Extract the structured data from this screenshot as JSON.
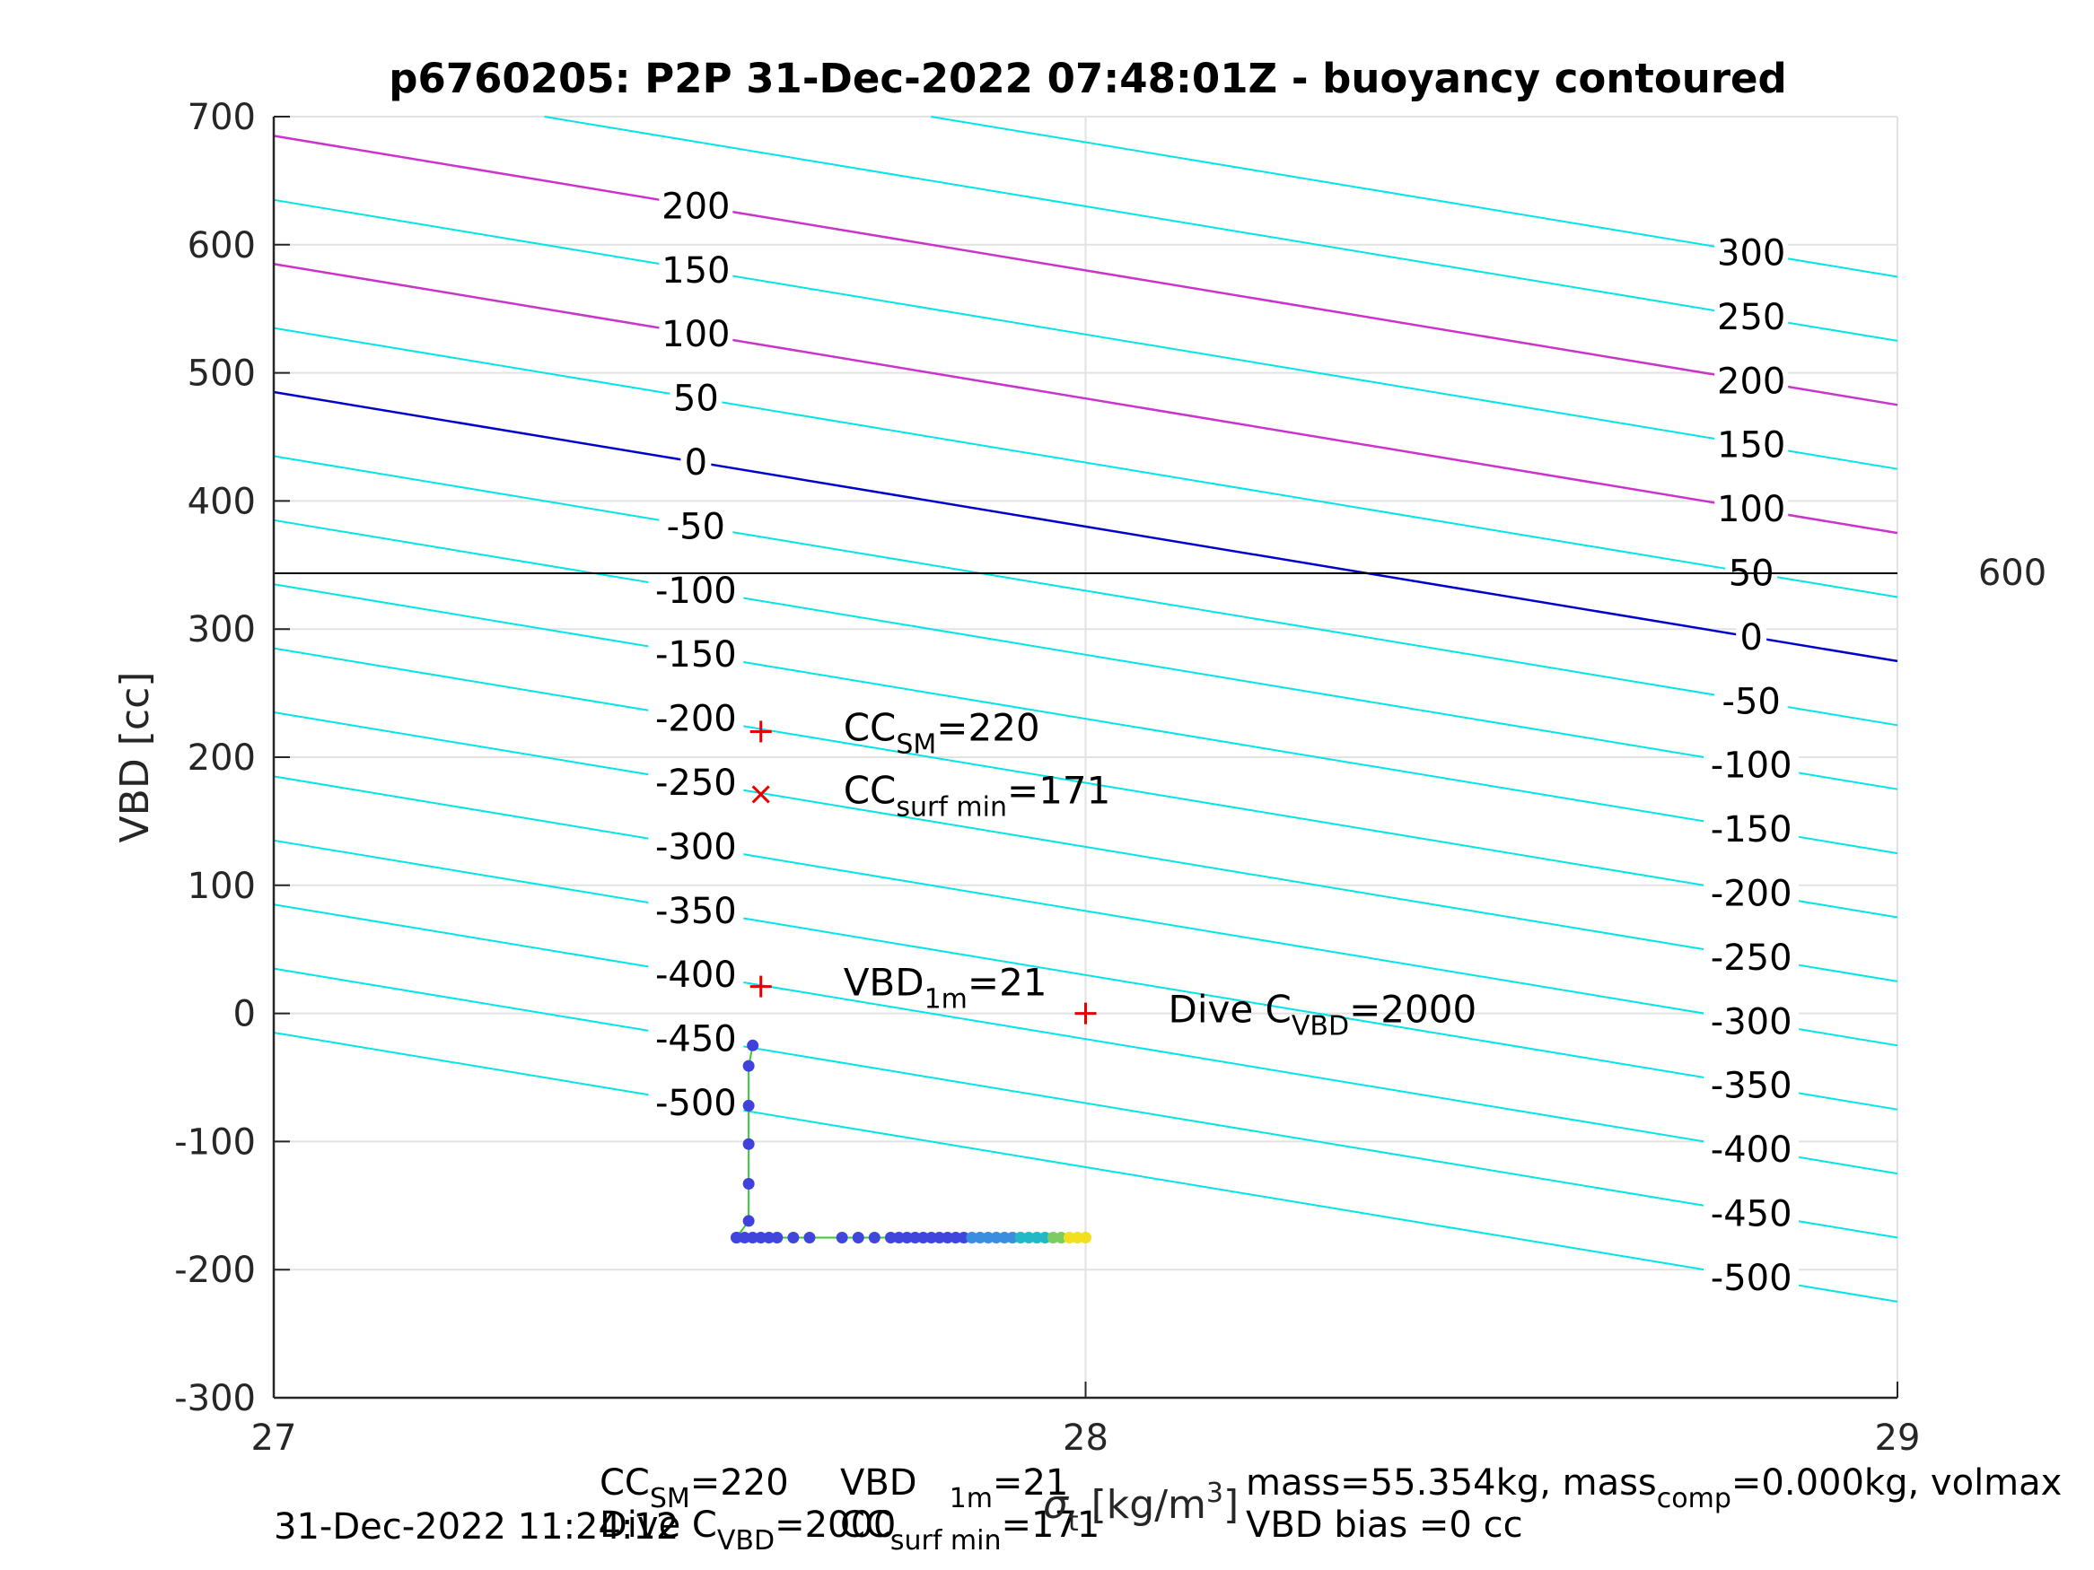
{
  "chart_data": {
    "type": "scatter",
    "title": "p6760205: P2P 31-Dec-2022 07:48:01Z - buoyancy contoured",
    "ylabel": "VBD [cc]",
    "xlabel": {
      "prefix": "σ",
      "sub": "t",
      "suffix": " [kg/m",
      "sup": "3",
      "close": "]"
    },
    "xlim": [
      27,
      29
    ],
    "ylim": [
      -300,
      700
    ],
    "xticks": [
      "27",
      "28",
      "29"
    ],
    "yticks": [
      "-300",
      "-200",
      "-100",
      "0",
      "100",
      "200",
      "300",
      "400",
      "500",
      "600",
      "700"
    ],
    "grid": true,
    "reference_line": {
      "y": 345,
      "label": "600"
    },
    "contours": {
      "slope_per_sigma": -105,
      "levels": [
        -500,
        -450,
        -400,
        -350,
        -300,
        -250,
        -200,
        -150,
        -100,
        -50,
        0,
        50,
        100,
        150,
        200,
        250,
        300
      ],
      "left_labels": [
        "200",
        "150",
        "100",
        "50",
        "0",
        "-50",
        "-100",
        "-150",
        "-200",
        "-250",
        "-300",
        "-350",
        "-400",
        "-450",
        "-500"
      ],
      "right_labels": [
        "300",
        "250",
        "200",
        "150",
        "100",
        "50",
        "0",
        "-50",
        "-100",
        "-150",
        "-200",
        "-250",
        "-300",
        "-350",
        "-400",
        "-450",
        "-500"
      ],
      "zero_level_color": "#0000cc",
      "magenta_levels": [
        100,
        200
      ],
      "magenta_color": "#cc33cc",
      "cyan_color": "#00e5e5"
    },
    "markers": [
      {
        "name": "cc_sm",
        "x": 27.6,
        "y": 220,
        "symbol": "+",
        "label": "CC",
        "sub": "SM",
        "value": "=220"
      },
      {
        "name": "cc_surf_min",
        "x": 27.6,
        "y": 171,
        "symbol": "x",
        "label": "CC",
        "sub": "surf min",
        "value": "=171"
      },
      {
        "name": "vbd_1m",
        "x": 27.6,
        "y": 21,
        "symbol": "+",
        "label": "VBD",
        "sub": "1m",
        "value": "=21"
      },
      {
        "name": "dive_cvbd",
        "x": 28.0,
        "y": 0,
        "symbol": "+",
        "label": "Dive C",
        "sub": "VBD",
        "value": "=2000"
      }
    ],
    "marker_color": "#e60000",
    "profile": {
      "line_color": "#33cc33",
      "descent": [
        {
          "x": 27.59,
          "y": -25
        },
        {
          "x": 27.585,
          "y": -41
        },
        {
          "x": 27.585,
          "y": -72
        },
        {
          "x": 27.585,
          "y": -102
        },
        {
          "x": 27.585,
          "y": -133
        },
        {
          "x": 27.585,
          "y": -162
        },
        {
          "x": 27.57,
          "y": -175
        }
      ],
      "bottom_y": -175,
      "bottom_x": [
        27.57,
        27.58,
        27.59,
        27.6,
        27.61,
        27.62,
        27.64,
        27.66,
        27.7,
        27.72,
        27.74,
        27.76,
        27.77,
        27.78,
        27.79,
        27.8,
        27.81,
        27.82,
        27.83,
        27.84,
        27.85,
        27.86,
        27.87,
        27.88,
        27.89,
        27.9,
        27.91,
        27.92,
        27.93,
        27.94,
        27.95,
        27.96,
        27.97,
        27.98,
        27.99,
        28.0
      ]
    }
  },
  "footer": {
    "left_col1": {
      "a_main": "CC",
      "a_sub": "SM",
      "a_val": "=220",
      "b_main": "Dive C",
      "b_sub": "VBD",
      "b_val": "=2000"
    },
    "left_col2": {
      "a_main": "VBD",
      "a_sub": "1m",
      "a_val": "=21",
      "b_main": "CC",
      "b_sub": "surf min",
      "b_val": "=171"
    },
    "timestamp": "31-Dec-2022 11:24:12",
    "right1": {
      "a": "mass=55.354kg, mass",
      "sub": "comp",
      "b": "=0.000kg, volmax"
    },
    "right2": "VBD bias =0 cc"
  }
}
